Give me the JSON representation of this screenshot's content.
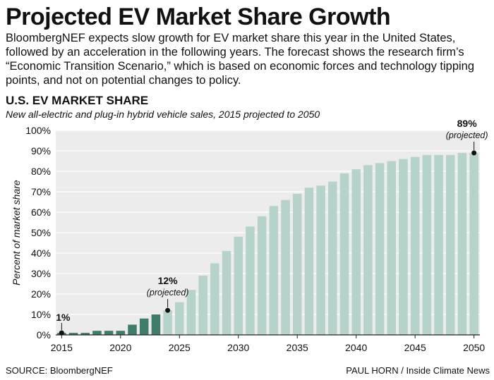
{
  "header": {
    "title": "Projected EV Market Share Growth",
    "intro": "BloombergNEF expects slow growth for EV market share this year in the United States, followed by an acceleration in the following years. The forecast shows the research firm’s “Economic Transition Scenario,” which is based on economic forces and technology tipping points, and not on potential changes to policy."
  },
  "footer": {
    "source": "SOURCE: BloombergNEF",
    "credit": "PAUL HORN / Inside Climate News"
  },
  "colors": {
    "actual": "#3e7d6c",
    "projected": "#b5d2cb",
    "grid": "#bbbbbb",
    "background": "#ececec"
  },
  "chart_data": {
    "type": "bar",
    "title": "U.S. EV MARKET SHARE",
    "subtitle": "New all-electric and plug-in hybrid vehicle sales, 2015 projected to 2050",
    "ylabel": "Percent of market share",
    "xlabel": "",
    "ylim": [
      0,
      100
    ],
    "grid": true,
    "yticks": [
      "0%",
      "10%",
      "20%",
      "30%",
      "40%",
      "50%",
      "60%",
      "70%",
      "80%",
      "90%",
      "100%"
    ],
    "xticks": [
      "2015",
      "2020",
      "2025",
      "2030",
      "2035",
      "2040",
      "2045",
      "2050"
    ],
    "categories": [
      2015,
      2016,
      2017,
      2018,
      2019,
      2020,
      2021,
      2022,
      2023,
      2024,
      2025,
      2026,
      2027,
      2028,
      2029,
      2030,
      2031,
      2032,
      2033,
      2034,
      2035,
      2036,
      2037,
      2038,
      2039,
      2040,
      2041,
      2042,
      2043,
      2044,
      2045,
      2046,
      2047,
      2048,
      2049,
      2050
    ],
    "values": [
      1,
      1,
      1,
      2,
      2,
      2,
      5,
      8,
      10,
      12,
      16,
      22,
      29,
      35,
      41,
      48,
      53,
      58,
      63,
      66,
      69,
      72,
      73,
      75,
      79,
      81,
      83,
      84,
      85,
      86,
      87,
      88,
      88,
      88,
      89,
      89
    ],
    "projected_from": 2024,
    "annotations": [
      {
        "year": 2015,
        "value": 1,
        "label": "1%",
        "sublabel": ""
      },
      {
        "year": 2024,
        "value": 12,
        "label": "12%",
        "sublabel": "(projected)"
      },
      {
        "year": 2050,
        "value": 89,
        "label": "89%",
        "sublabel": "(projected)"
      }
    ]
  }
}
